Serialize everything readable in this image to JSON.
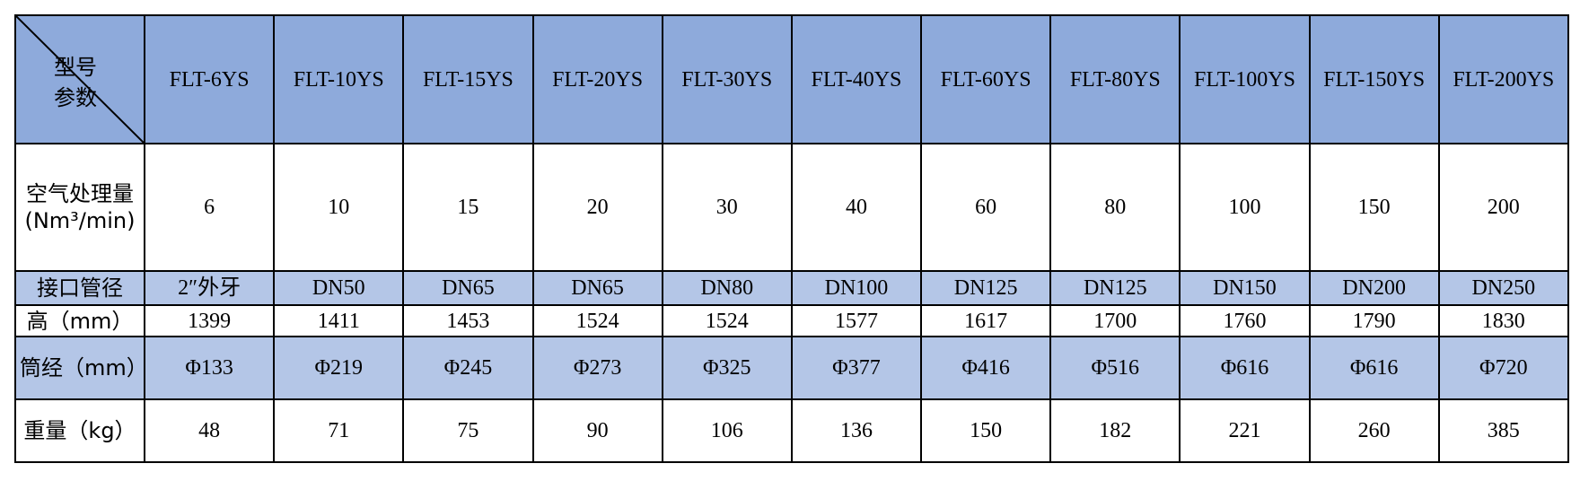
{
  "header": {
    "corner_top": "型号",
    "corner_bottom": "参数",
    "models": [
      "FLT-6YS",
      "FLT-10YS",
      "FLT-15YS",
      "FLT-20YS",
      "FLT-30YS",
      "FLT-40YS",
      "FLT-60YS",
      "FLT-80YS",
      "FLT-100YS",
      "FLT-150YS",
      "FLT-200YS"
    ]
  },
  "table": {
    "rows": [
      {
        "label": "空气处理量(Nm³/min)",
        "values": [
          6,
          10,
          15,
          20,
          30,
          40,
          60,
          80,
          100,
          150,
          200
        ]
      },
      {
        "label": "接口管径",
        "values": [
          "2″外牙",
          "DN50",
          "DN65",
          "DN65",
          "DN80",
          "DN100",
          "DN125",
          "DN125",
          "DN150",
          "DN200",
          "DN250"
        ]
      },
      {
        "label": "高（mm）",
        "values": [
          1399,
          1411,
          1453,
          1524,
          1524,
          1577,
          1617,
          1700,
          1760,
          1790,
          1830
        ]
      },
      {
        "label": "筒经（mm）",
        "values": [
          "Φ133",
          "Φ219",
          "Φ245",
          "Φ273",
          "Φ325",
          "Φ377",
          "Φ416",
          "Φ516",
          "Φ616",
          "Φ616",
          "Φ720"
        ]
      },
      {
        "label": "重量（kg）",
        "values": [
          48,
          71,
          75,
          90,
          106,
          136,
          150,
          182,
          221,
          260,
          385
        ]
      }
    ]
  }
}
